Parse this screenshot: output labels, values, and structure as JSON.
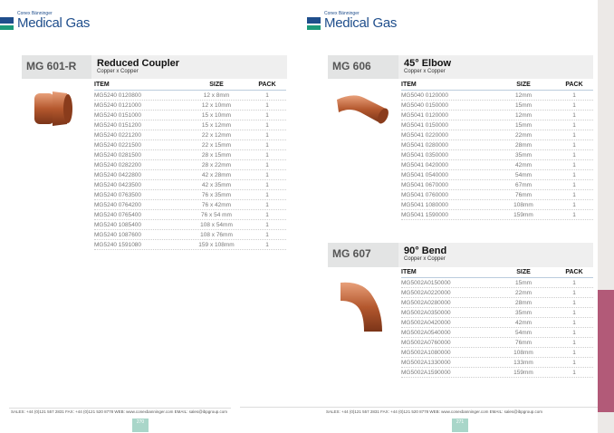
{
  "brand": {
    "company": "Conex Bänninger",
    "name": "Medical Gas"
  },
  "colors": {
    "brand_blue": "#1f4e8c",
    "brand_green": "#1c9a7a",
    "page_tab": "#a9d6c9",
    "accent_pink": "#b25a78"
  },
  "headers": {
    "item": "ITEM",
    "size": "SIZE",
    "pack": "PACK"
  },
  "products": [
    {
      "code": "MG 601-R",
      "title": "Reduced Coupler",
      "subtitle": "Copper x Copper",
      "rows": [
        [
          "MG5240 0120800",
          "12 x 8mm",
          "1"
        ],
        [
          "MG5240 0121000",
          "12 x 10mm",
          "1"
        ],
        [
          "MG5240 0151000",
          "15 x 10mm",
          "1"
        ],
        [
          "MG5240 0151200",
          "15 x 12mm",
          "1"
        ],
        [
          "MG5240 0221200",
          "22 x 12mm",
          "1"
        ],
        [
          "MG5240 0221500",
          "22 x 15mm",
          "1"
        ],
        [
          "MG5240 0281500",
          "28 x 15mm",
          "1"
        ],
        [
          "MG5240 0282200",
          "28 x 22mm",
          "1"
        ],
        [
          "MG5240 0422800",
          "42 x 28mm",
          "1"
        ],
        [
          "MG5240 0423500",
          "42 x 35mm",
          "1"
        ],
        [
          "MG5240 0763500",
          "76 x 35mm",
          "1"
        ],
        [
          "MG5240 0764200",
          "76 x 42mm",
          "1"
        ],
        [
          "MG5240 0765400",
          "76 x 54 mm",
          "1"
        ],
        [
          "MG5240 1085400",
          "108 x 54mm",
          "1"
        ],
        [
          "MG5240 1087600",
          "108 x 76mm",
          "1"
        ],
        [
          "MG5240 1591080",
          "159 x 108mm",
          "1"
        ]
      ]
    },
    {
      "code": "MG 606",
      "title": "45° Elbow",
      "subtitle": "Copper x Copper",
      "rows": [
        [
          "MG5040 0120000",
          "12mm",
          "1"
        ],
        [
          "MG5040 0150000",
          "15mm",
          "1"
        ],
        [
          "MG5041 0120000",
          "12mm",
          "1"
        ],
        [
          "MG5041 0150000",
          "15mm",
          "1"
        ],
        [
          "MG5041 0220000",
          "22mm",
          "1"
        ],
        [
          "MG5041 0280000",
          "28mm",
          "1"
        ],
        [
          "MG5041 0350000",
          "35mm",
          "1"
        ],
        [
          "MG5041 0420000",
          "42mm",
          "1"
        ],
        [
          "MG5041 0540000",
          "54mm",
          "1"
        ],
        [
          "MG5041 0670000",
          "67mm",
          "1"
        ],
        [
          "MG5041 0760000",
          "76mm",
          "1"
        ],
        [
          "MG5041 1080000",
          "108mm",
          "1"
        ],
        [
          "MG5041 1590000",
          "159mm",
          "1"
        ]
      ]
    },
    {
      "code": "MG 607",
      "title": "90° Bend",
      "subtitle": "Copper x Copper",
      "rows": [
        [
          "MG5002A0150000",
          "15mm",
          "1"
        ],
        [
          "MG5002A0220000",
          "22mm",
          "1"
        ],
        [
          "MG5002A0280000",
          "28mm",
          "1"
        ],
        [
          "MG5002A0350000",
          "35mm",
          "1"
        ],
        [
          "MG5002A0420000",
          "42mm",
          "1"
        ],
        [
          "MG5002A0540000",
          "54mm",
          "1"
        ],
        [
          "MG5002A0760000",
          "76mm",
          "1"
        ],
        [
          "MG5002A1080000",
          "108mm",
          "1"
        ],
        [
          "MG5002A1330000",
          "133mm",
          "1"
        ],
        [
          "MG5002A1590000",
          "159mm",
          "1"
        ]
      ]
    }
  ],
  "footer": "SALES: +44 (0)121 557 2831  FAX: +44 (0)121 520 8778  WEB: www.conexbanninger.com  EMAIL: sales@ibpgroup.com",
  "pages": [
    "270",
    "271"
  ]
}
